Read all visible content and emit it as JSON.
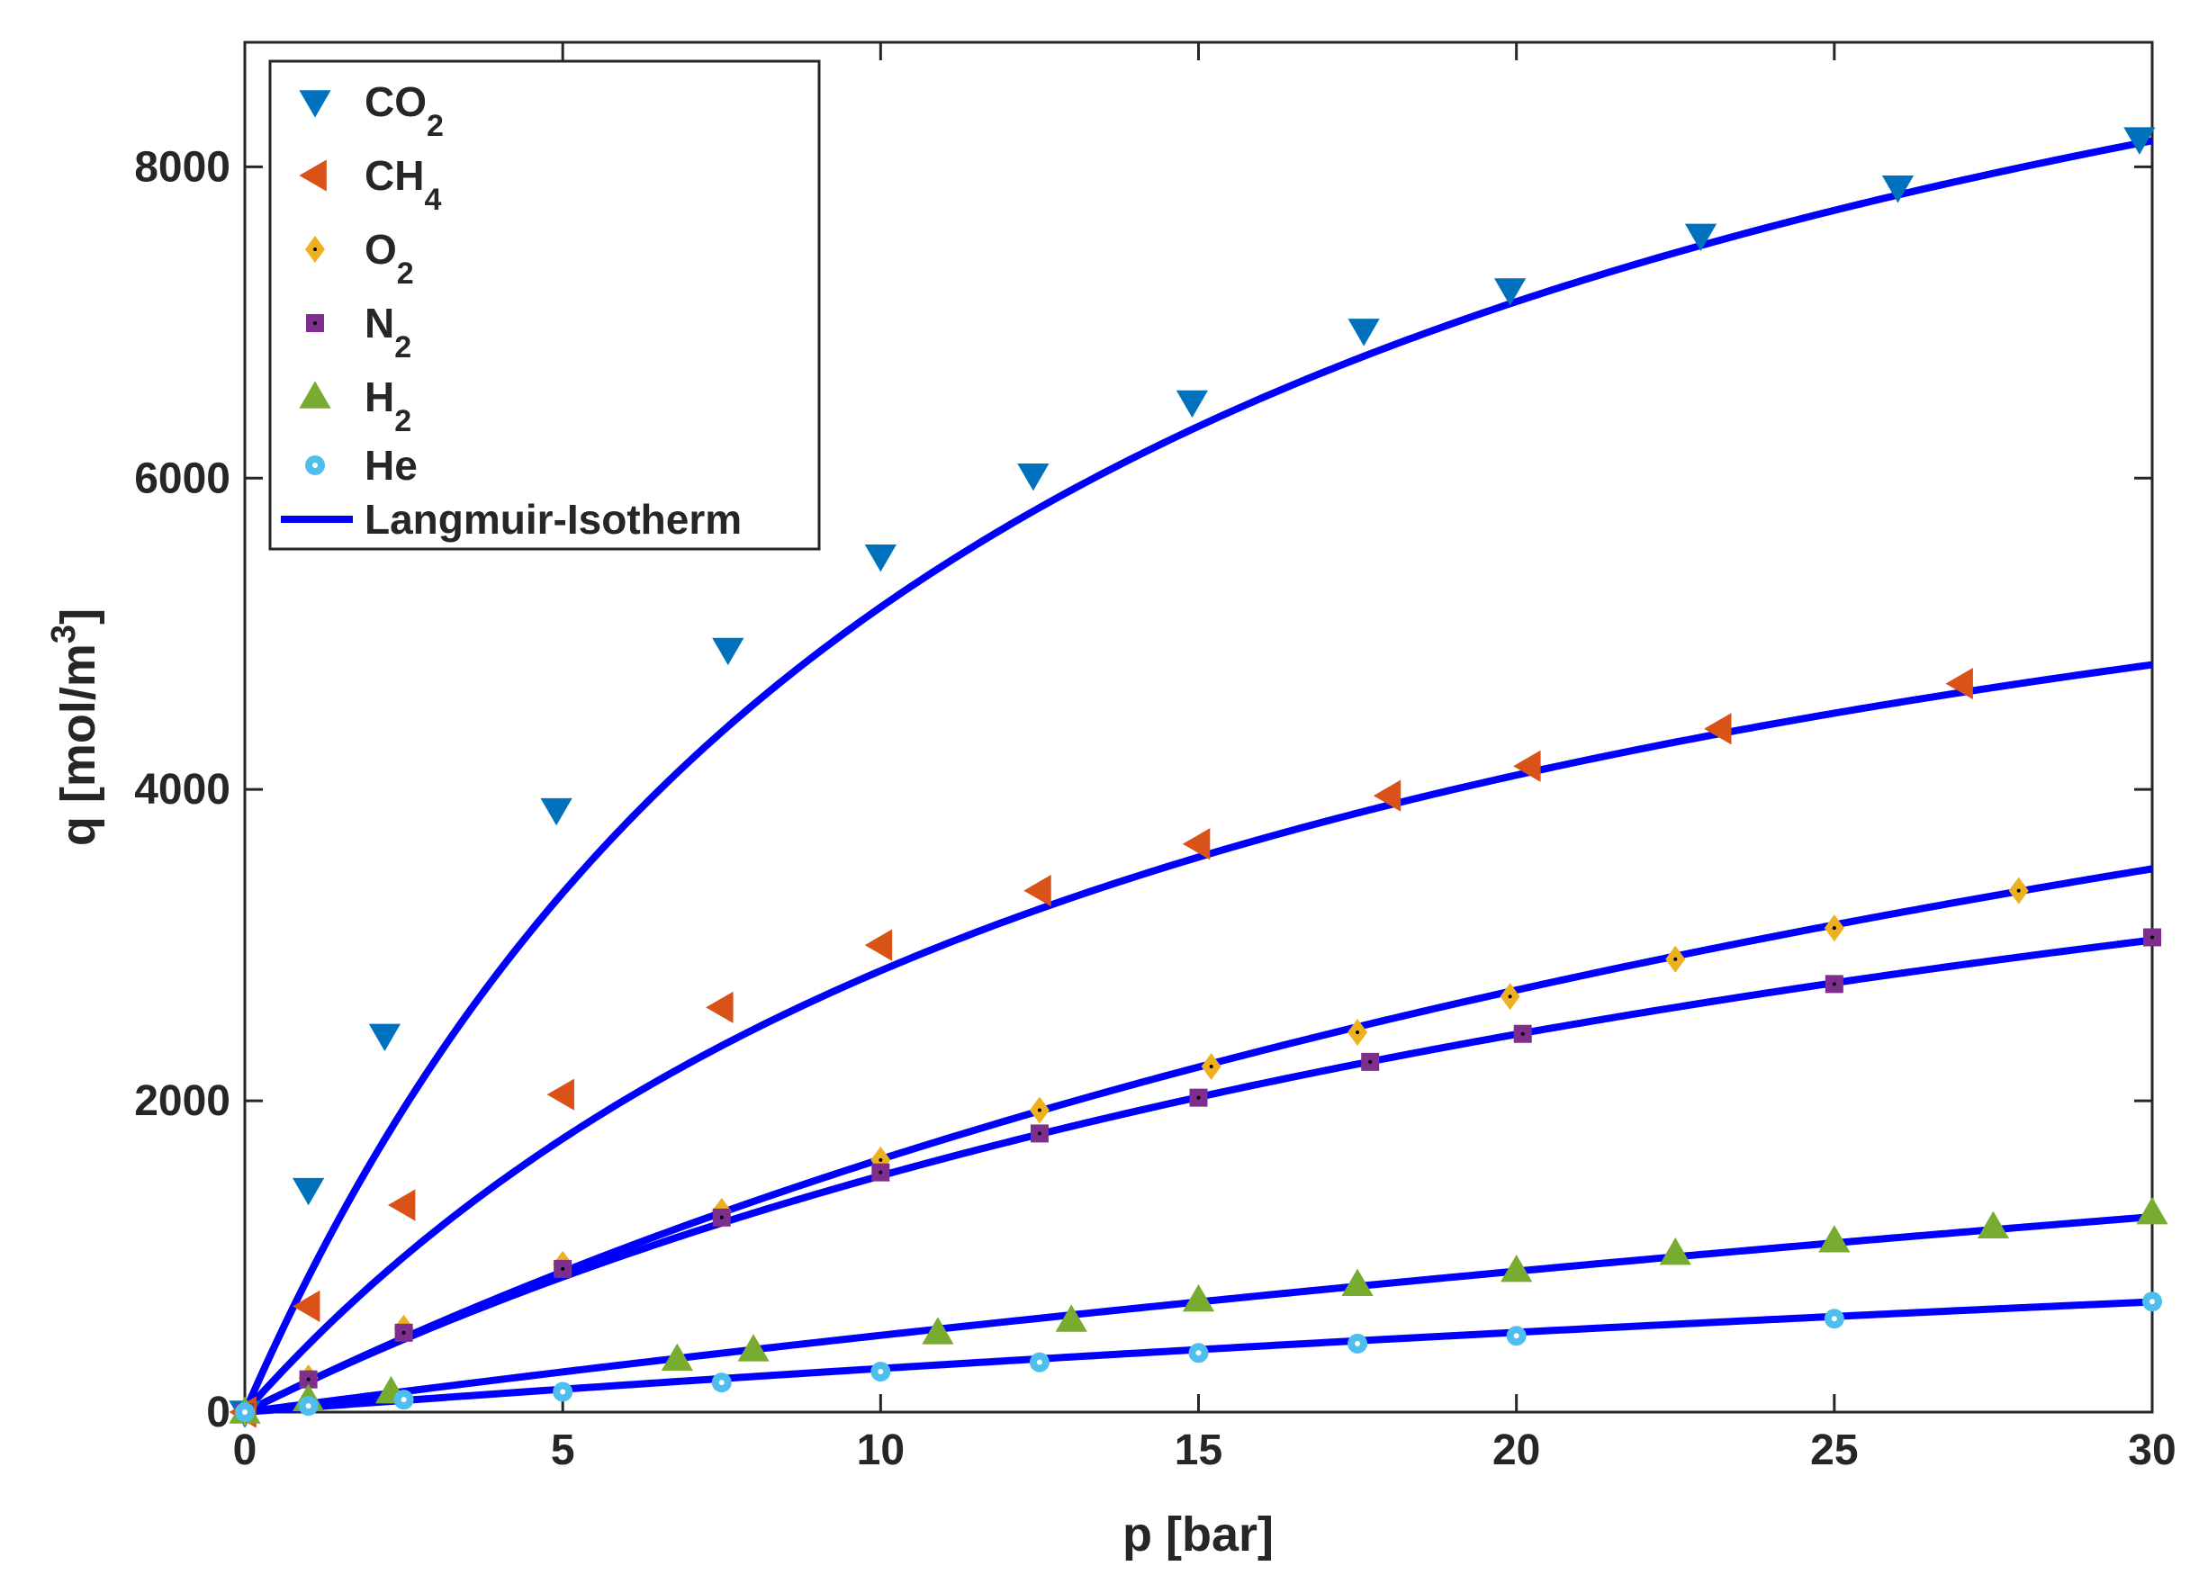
{
  "chart_data": {
    "type": "scatter",
    "xlabel": "p [bar]",
    "ylabel_main": "q [mol/m",
    "ylabel_sup": "3",
    "ylabel_close": "]",
    "xlim": [
      0,
      30
    ],
    "ylim": [
      0,
      8800
    ],
    "xticks": [
      0,
      5,
      10,
      15,
      20,
      25,
      30
    ],
    "yticks": [
      0,
      2000,
      4000,
      6000,
      8000
    ],
    "xtick_labels": [
      "0",
      "5",
      "10",
      "15",
      "20",
      "25",
      "30"
    ],
    "ytick_labels": [
      "0",
      "2000",
      "4000",
      "6000",
      "8000"
    ],
    "grid": false,
    "legend_position": "top-left",
    "series": [
      {
        "name": "CO2",
        "label_main": "CO",
        "label_sub": "2",
        "marker": "triangle-down",
        "color": "#0072BD",
        "x": [
          0,
          1,
          2.2,
          4.9,
          7.6,
          10,
          12.4,
          14.9,
          17.6,
          19.9,
          22.9,
          26,
          29.8
        ],
        "y": [
          0,
          1430,
          2420,
          3870,
          4900,
          5500,
          6020,
          6490,
          6950,
          7210,
          7560,
          7870,
          8180
        ]
      },
      {
        "name": "CH4",
        "label_main": "CH",
        "label_sub": "4",
        "marker": "triangle-left",
        "color": "#D95319",
        "x": [
          0,
          1,
          2.5,
          5,
          7.5,
          10,
          12.5,
          15,
          18,
          20.2,
          23.2,
          27
        ],
        "y": [
          0,
          680,
          1330,
          2040,
          2600,
          3000,
          3350,
          3650,
          3960,
          4150,
          4390,
          4680
        ]
      },
      {
        "name": "O2",
        "label_main": "O",
        "label_sub": "2",
        "marker": "diamond",
        "color": "#EDB120",
        "x": [
          0,
          1,
          2.5,
          5,
          7.5,
          10,
          12.5,
          15.2,
          17.5,
          19.9,
          22.5,
          25,
          27.9
        ],
        "y": [
          0,
          220,
          540,
          950,
          1290,
          1620,
          1940,
          2220,
          2440,
          2670,
          2910,
          3110,
          3350
        ]
      },
      {
        "name": "N2",
        "label_main": "N",
        "label_sub": "2",
        "marker": "square",
        "color": "#7E2F8E",
        "x": [
          0,
          1,
          2.5,
          5,
          7.5,
          10,
          12.5,
          15,
          17.7,
          20.1,
          25,
          30
        ],
        "y": [
          0,
          210,
          510,
          920,
          1250,
          1540,
          1790,
          2020,
          2250,
          2430,
          2750,
          3050
        ]
      },
      {
        "name": "H2",
        "label_main": "H",
        "label_sub": "2",
        "marker": "triangle-up",
        "color": "#77AC30",
        "x": [
          0,
          1,
          2.3,
          6.8,
          8,
          10.9,
          13,
          15,
          17.5,
          20,
          22.5,
          25,
          27.5,
          30
        ],
        "y": [
          0,
          80,
          130,
          340,
          400,
          510,
          590,
          720,
          820,
          910,
          1020,
          1100,
          1190,
          1280
        ]
      },
      {
        "name": "He",
        "label_main": "He",
        "label_sub": "",
        "marker": "circle",
        "color": "#4DBEEE",
        "x": [
          0,
          1,
          2.5,
          5,
          7.5,
          10,
          12.5,
          15,
          17.5,
          20,
          25,
          30
        ],
        "y": [
          0,
          40,
          80,
          130,
          190,
          260,
          320,
          380,
          440,
          490,
          600,
          710
        ]
      }
    ],
    "fit_lines": {
      "name": "Langmuir-Isotherm",
      "color": "#0000FF",
      "curves": [
        {
          "for": "CO2",
          "qmax": 11500,
          "b": 0.0817
        },
        {
          "for": "CH4",
          "qmax": 7350,
          "b": 0.0628
        },
        {
          "for": "O2",
          "qmax": 8200,
          "b": 0.0247
        },
        {
          "for": "N2",
          "qmax": 6050,
          "b": 0.0335
        },
        {
          "for": "H2",
          "qmax": 5500,
          "b": 0.00985
        },
        {
          "for": "He",
          "qmax": 3000,
          "b": 0.0103
        }
      ]
    }
  }
}
